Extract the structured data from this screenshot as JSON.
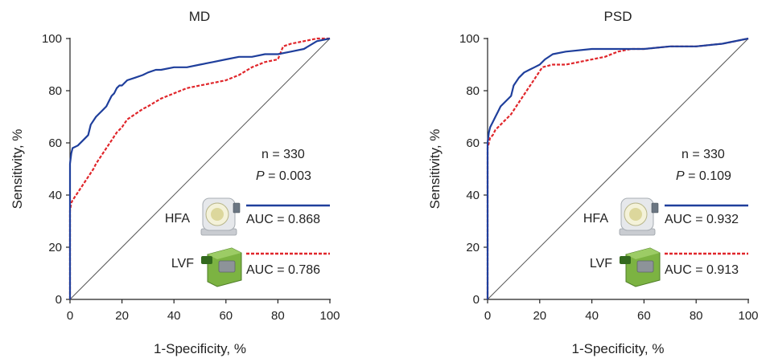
{
  "figure": {
    "panels": [
      {
        "title": "MD",
        "n_label": "n = 330",
        "p_symbol": "P",
        "p_value_text": " = 0.003",
        "series": [
          {
            "device": "HFA",
            "auc_text": "AUC = 0.868",
            "color": "#1f3f9c",
            "style": "solid"
          },
          {
            "device": "LVF",
            "auc_text": "AUC = 0.786",
            "color": "#e0262b",
            "style": "dashed"
          }
        ]
      },
      {
        "title": "PSD",
        "n_label": "n = 330",
        "p_symbol": "P",
        "p_value_text": " = 0.109",
        "series": [
          {
            "device": "HFA",
            "auc_text": "AUC = 0.932",
            "color": "#1f3f9c",
            "style": "solid"
          },
          {
            "device": "LVF",
            "auc_text": "AUC = 0.913",
            "color": "#e0262b",
            "style": "dashed"
          }
        ]
      }
    ]
  },
  "chart_data": [
    {
      "type": "line",
      "title": "MD",
      "xlabel": "1-Specificity, %",
      "ylabel": "Sensitivity, %",
      "xlim": [
        0,
        100
      ],
      "ylim": [
        0,
        100
      ],
      "xticks": [
        "0",
        "20",
        "40",
        "60",
        "80",
        "100"
      ],
      "yticks": [
        "0",
        "20",
        "40",
        "60",
        "80",
        "100"
      ],
      "diagonal": true,
      "series": [
        {
          "name": "HFA",
          "color": "#1f3f9c",
          "x": [
            0,
            0,
            0.5,
            1,
            3,
            5,
            7,
            8,
            10,
            12,
            14,
            15,
            16,
            17,
            18,
            19,
            20,
            22,
            25,
            28,
            30,
            33,
            35,
            40,
            45,
            50,
            55,
            60,
            65,
            70,
            75,
            80,
            85,
            90,
            95,
            100
          ],
          "y": [
            0,
            52,
            56,
            58,
            59,
            61,
            63,
            67,
            70,
            72,
            74,
            76,
            78,
            79,
            81,
            82,
            82,
            84,
            85,
            86,
            87,
            88,
            88,
            89,
            89,
            90,
            91,
            92,
            93,
            93,
            94,
            94,
            95,
            96,
            99,
            100
          ]
        },
        {
          "name": "LVF",
          "color": "#e0262b",
          "x": [
            0,
            0,
            0.5,
            1,
            3,
            5,
            7,
            9,
            10,
            12,
            14,
            16,
            18,
            20,
            22,
            25,
            28,
            30,
            35,
            40,
            45,
            50,
            55,
            60,
            65,
            70,
            75,
            80,
            82,
            85,
            90,
            95,
            100
          ],
          "y": [
            0,
            34,
            37,
            38,
            41,
            44,
            47,
            50,
            52,
            55,
            58,
            61,
            64,
            66,
            69,
            71,
            73,
            74,
            77,
            79,
            81,
            82,
            83,
            84,
            86,
            89,
            91,
            92,
            97,
            98,
            99,
            100,
            100
          ]
        }
      ]
    },
    {
      "type": "line",
      "title": "PSD",
      "xlabel": "1-Specificity, %",
      "ylabel": "Sensitivity, %",
      "xlim": [
        0,
        100
      ],
      "ylim": [
        0,
        100
      ],
      "xticks": [
        "0",
        "20",
        "40",
        "60",
        "80",
        "100"
      ],
      "yticks": [
        "0",
        "20",
        "40",
        "60",
        "80",
        "100"
      ],
      "diagonal": true,
      "series": [
        {
          "name": "HFA",
          "color": "#1f3f9c",
          "x": [
            0,
            0,
            0.5,
            1,
            2,
            3,
            4,
            5,
            7,
            9,
            10,
            12,
            14,
            16,
            18,
            20,
            22,
            25,
            30,
            40,
            50,
            60,
            70,
            80,
            90,
            100
          ],
          "y": [
            0,
            60,
            64,
            66,
            68,
            70,
            72,
            74,
            76,
            78,
            82,
            85,
            87,
            88,
            89,
            90,
            92,
            94,
            95,
            96,
            96,
            96,
            97,
            97,
            98,
            100
          ]
        },
        {
          "name": "LVF",
          "color": "#e0262b",
          "x": [
            0,
            0,
            0.5,
            1,
            2,
            3,
            5,
            7,
            9,
            11,
            13,
            15,
            17,
            19,
            21,
            25,
            30,
            35,
            40,
            45,
            50,
            55,
            60,
            70,
            80,
            90,
            95,
            100
          ],
          "y": [
            0,
            58,
            60,
            62,
            63,
            65,
            67,
            69,
            71,
            74,
            77,
            80,
            83,
            86,
            89,
            90,
            90,
            91,
            92,
            93,
            95,
            96,
            96,
            97,
            97,
            98,
            99,
            100
          ]
        }
      ]
    }
  ]
}
